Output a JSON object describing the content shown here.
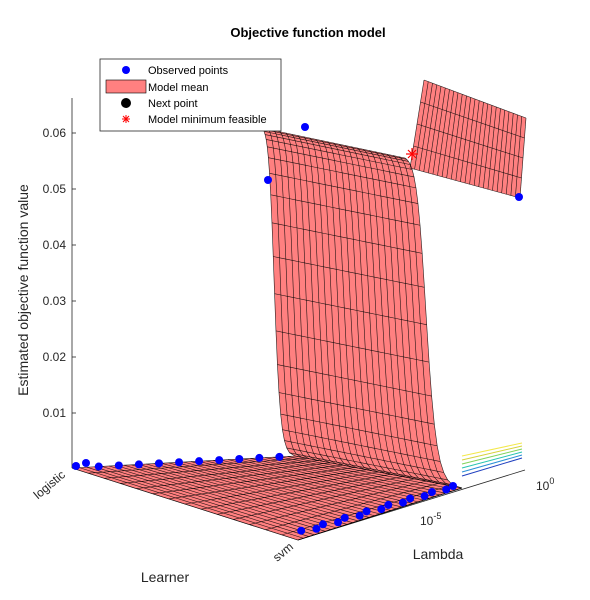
{
  "chart_data": {
    "type": "surface3d",
    "title": "Objective function model",
    "xlabel": "Lambda",
    "ylabel": "Learner",
    "zlabel": "Estimated objective function value",
    "x_scale": "log",
    "x_tick_labels": [
      {
        "value": 1e-05,
        "base": "10",
        "exponent": "-5"
      },
      {
        "value": 1,
        "base": "10",
        "exponent": "0"
      }
    ],
    "y_categories": [
      "logistic",
      "svm"
    ],
    "z_ticks": [
      "0.01",
      "0.02",
      "0.03",
      "0.04",
      "0.05",
      "0.06"
    ],
    "legend": {
      "position": "top-left",
      "entries": [
        {
          "label": "Observed points",
          "marker": "circle",
          "color": "#0000ff"
        },
        {
          "label": "Model mean",
          "marker": "patch",
          "color": "#ff8080"
        },
        {
          "label": "Next point",
          "marker": "circle",
          "color": "#000000"
        },
        {
          "label": "Model minimum feasible",
          "marker": "asterisk",
          "color": "#ff0000"
        }
      ]
    },
    "colors": {
      "surface": "#ff8080",
      "observed": "#0000ff",
      "minimum": "#ff0000"
    }
  }
}
